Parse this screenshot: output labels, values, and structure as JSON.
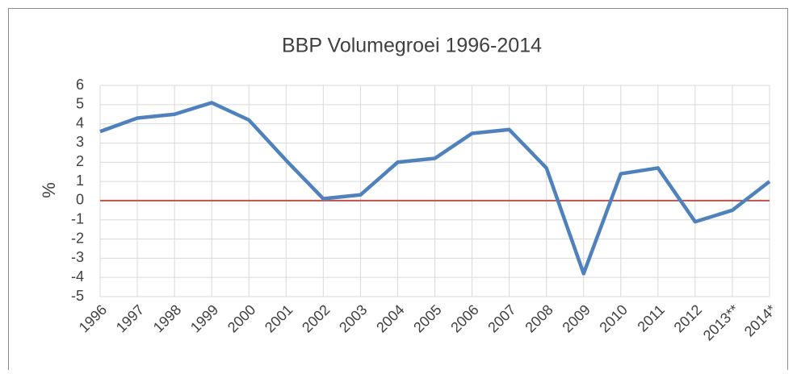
{
  "chart_data": {
    "type": "line",
    "title": "BBP Volumegroei 1996-2014",
    "ylabel": "%",
    "categories": [
      "1996",
      "1997",
      "1998",
      "1999",
      "2000",
      "2001",
      "2002",
      "2003",
      "2004",
      "2005",
      "2006",
      "2007",
      "2008",
      "2009",
      "2010",
      "2011",
      "2012",
      "2013**",
      "2014*"
    ],
    "series": [
      {
        "name": "BBP Volumegroei",
        "color": "#4f81bd",
        "values": [
          3.6,
          4.3,
          4.5,
          5.1,
          4.2,
          2.1,
          0.1,
          0.3,
          2.0,
          2.2,
          3.5,
          3.7,
          1.7,
          -3.8,
          1.4,
          1.7,
          -1.1,
          -0.5,
          1.0
        ]
      }
    ],
    "ylim": [
      -5,
      6
    ],
    "yticks": [
      -5,
      -4,
      -3,
      -2,
      -1,
      0,
      1,
      2,
      3,
      4,
      5,
      6
    ],
    "grid": true,
    "reference_line": {
      "value": 0,
      "color": "#c0504d"
    }
  }
}
